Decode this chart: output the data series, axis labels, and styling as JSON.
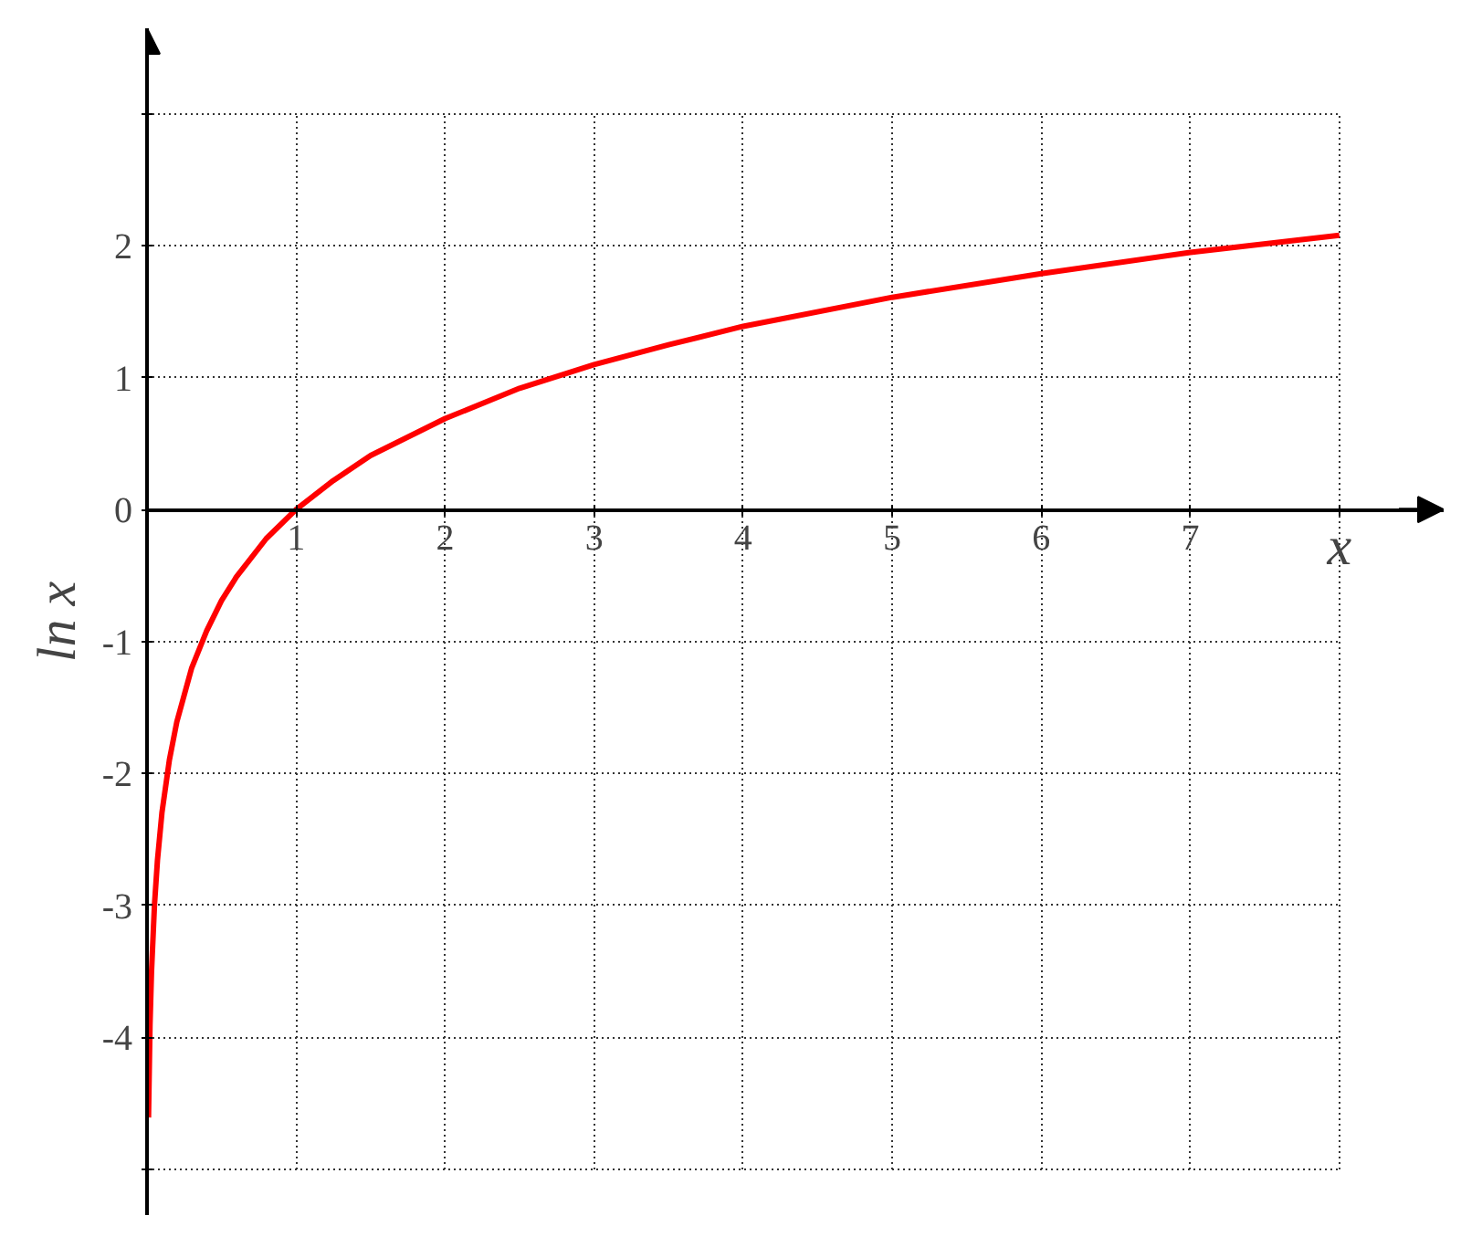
{
  "chart_data": {
    "type": "line",
    "xlabel": "x",
    "ylabel": "ln x",
    "x": [
      0.01,
      0.02,
      0.03,
      0.05,
      0.07,
      0.1,
      0.15,
      0.2,
      0.3,
      0.4,
      0.5,
      0.6,
      0.8,
      1,
      1.25,
      1.5,
      2,
      2.5,
      3,
      3.5,
      4,
      5,
      6,
      7,
      8
    ],
    "series": [
      {
        "color": "#ff0000",
        "values": [
          -4.61,
          -3.91,
          -3.51,
          -3.0,
          -2.66,
          -2.3,
          -1.9,
          -1.61,
          -1.2,
          -0.92,
          -0.69,
          -0.51,
          -0.22,
          0,
          0.22,
          0.41,
          0.69,
          0.92,
          1.1,
          1.25,
          1.39,
          1.61,
          1.79,
          1.95,
          2.08
        ]
      }
    ],
    "xlim": [
      0,
      8.7
    ],
    "ylim": [
      -5.35,
      3.65
    ],
    "xticks": [
      1,
      2,
      3,
      4,
      5,
      6,
      7,
      {
        "value": 8,
        "label": null
      }
    ],
    "yticks": [
      {
        "value": -5,
        "label": null
      },
      -4,
      -3,
      -2,
      -1,
      0,
      1,
      2,
      {
        "value": 3,
        "label": null
      }
    ],
    "grid": true,
    "marker": "none",
    "line_style": "solid"
  }
}
